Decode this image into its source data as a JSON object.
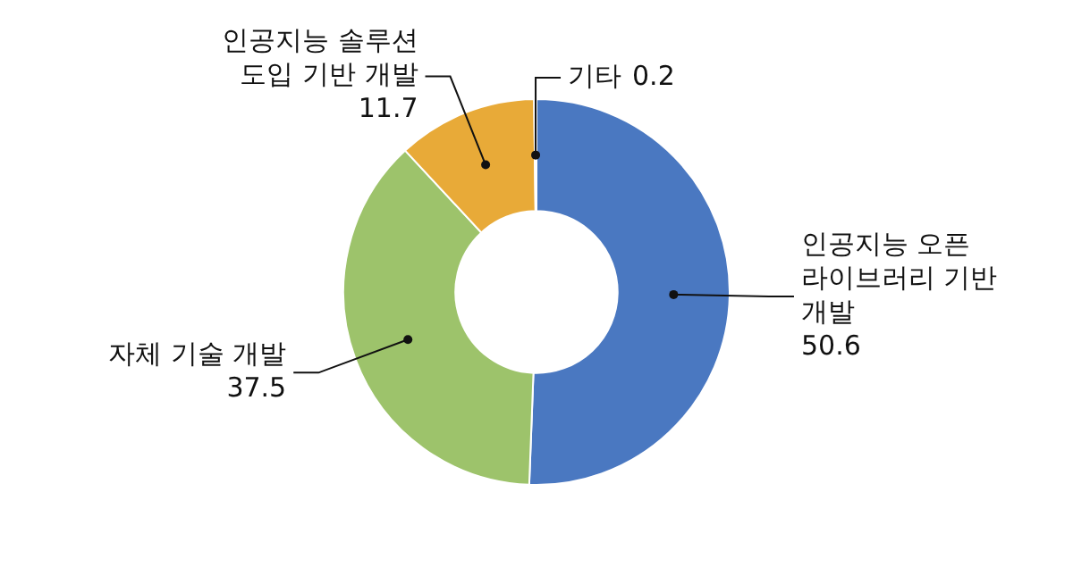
{
  "chart_data": {
    "type": "donut",
    "categories": [
      "인공지능 오픈 라이브러리 기반 개발",
      "자체 기술 개발",
      "인공지능 솔루션 도입 기반 개발",
      "기타"
    ],
    "values": [
      50.6,
      37.5,
      11.7,
      0.2
    ],
    "colors": [
      "#4a78c1",
      "#9dc36b",
      "#e8aa38",
      "#404040"
    ],
    "data_labels": true,
    "legend": false
  }
}
